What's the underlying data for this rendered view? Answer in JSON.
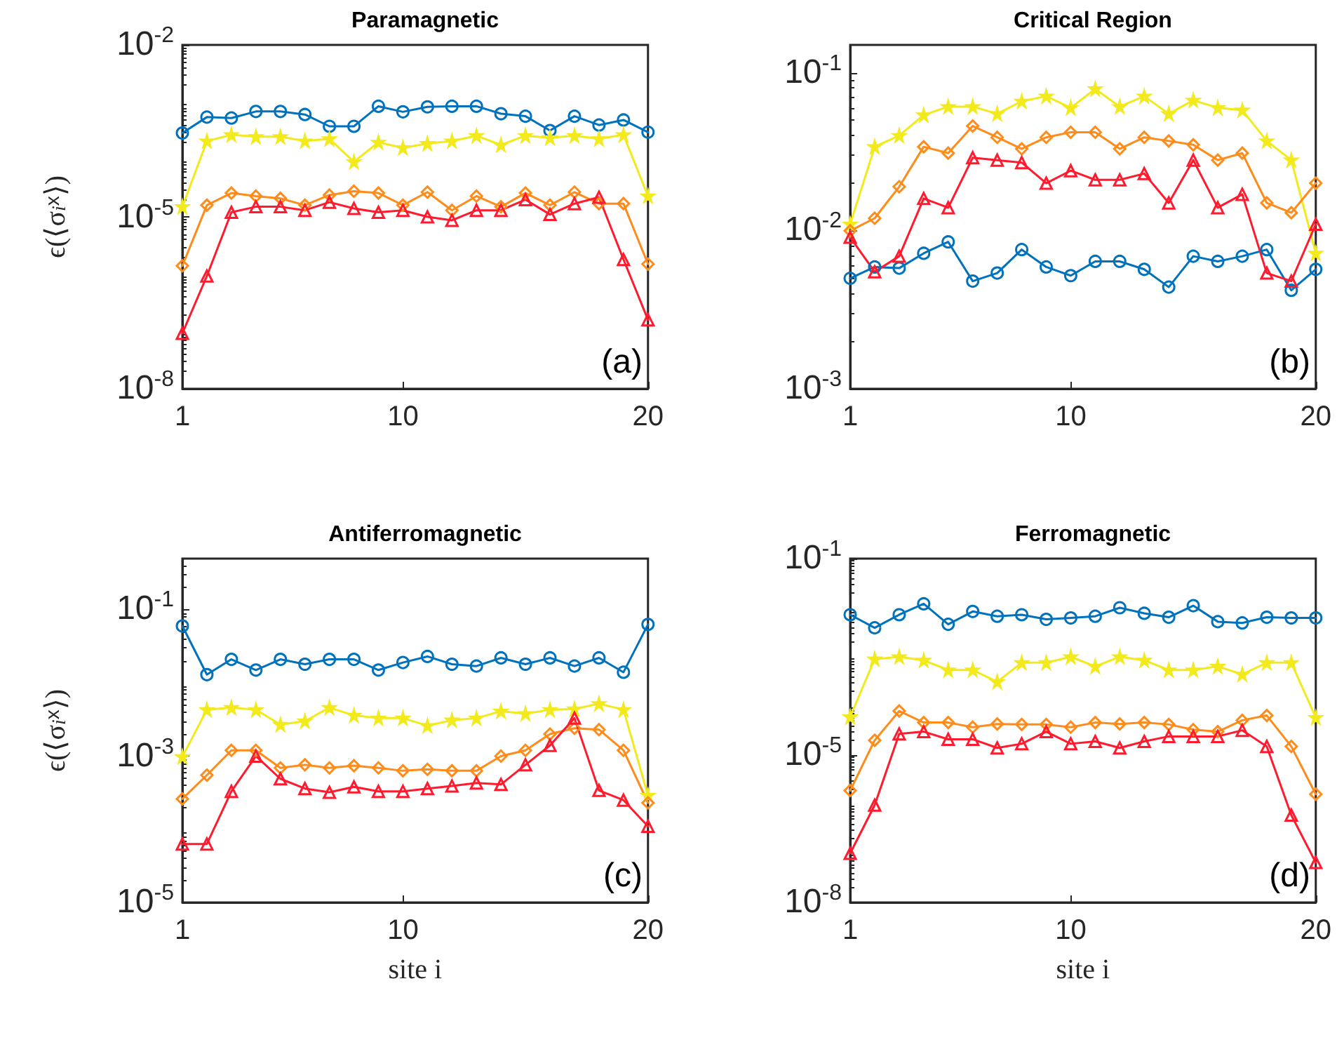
{
  "chart_data": [
    {
      "type": "line",
      "title": "Paramagnetic",
      "ylabel": "ϵ(⟨σ$_{i}$$^{x}$⟩)",
      "annotations": [
        "(a)"
      ],
      "x": [
        1,
        2,
        3,
        4,
        5,
        6,
        7,
        8,
        9,
        10,
        11,
        12,
        13,
        14,
        15,
        16,
        17,
        18,
        19,
        20
      ],
      "xlim": [
        1,
        20
      ],
      "xticks": [
        1,
        10,
        20
      ],
      "log": true,
      "ylim": [
        1e-08,
        0.01
      ],
      "yticks": [
        {
          "value": 1e-08,
          "label": "10$^{-8}$"
        },
        {
          "value": 1e-05,
          "label": "10$^{-5}$"
        },
        {
          "value": 0.01,
          "label": "10$^{-2}$"
        }
      ],
      "grid": false,
      "line_style": "solid",
      "series": [
        {
          "color": "#0072bd",
          "marker": "circle",
          "values": [
            0.00029,
            0.00055,
            0.00053,
            0.00069,
            0.00069,
            0.00061,
            0.00038,
            0.00038,
            0.00085,
            0.00068,
            0.00083,
            0.00085,
            0.00085,
            0.00063,
            0.00057,
            0.00032,
            0.00057,
            0.0004,
            0.00049,
            0.0003
          ]
        },
        {
          "color": "#f2ea1c",
          "marker": "star",
          "values": [
            1.5e-05,
            0.00021,
            0.00027,
            0.00025,
            0.00025,
            0.00021,
            0.00023,
            9.1e-05,
            0.0002,
            0.00016,
            0.00019,
            0.00021,
            0.00026,
            0.00018,
            0.00026,
            0.00024,
            0.00026,
            0.00023,
            0.00027,
            2.3e-05
          ]
        },
        {
          "color": "#ff8c1a",
          "marker": "diamond",
          "values": [
            1.4e-06,
            1.6e-05,
            2.6e-05,
            2.3e-05,
            2.1e-05,
            1.6e-05,
            2.4e-05,
            2.8e-05,
            2.6e-05,
            1.6e-05,
            2.7e-05,
            1.3e-05,
            2.3e-05,
            1.5e-05,
            2.6e-05,
            1.6e-05,
            2.7e-05,
            1.7e-05,
            1.7e-05,
            1.5e-06
          ]
        },
        {
          "color": "#ff1a2e",
          "marker": "triangle",
          "values": [
            9.3e-08,
            9.3e-07,
            1.2e-05,
            1.5e-05,
            1.5e-05,
            1.3e-05,
            1.8e-05,
            1.4e-05,
            1.2e-05,
            1.3e-05,
            1e-05,
            8.7e-06,
            1.3e-05,
            1.3e-05,
            2e-05,
            1.1e-05,
            1.7e-05,
            2.2e-05,
            1.8e-06,
            1.6e-07
          ]
        }
      ]
    },
    {
      "type": "line",
      "title": "Critical Region",
      "annotations": [
        "(b)"
      ],
      "x": [
        1,
        2,
        3,
        4,
        5,
        6,
        7,
        8,
        9,
        10,
        11,
        12,
        13,
        14,
        15,
        16,
        17,
        18,
        19,
        20
      ],
      "xlim": [
        1,
        20
      ],
      "xticks": [
        1,
        10,
        20
      ],
      "log": true,
      "ylim": [
        0.001,
        0.15
      ],
      "yticks": [
        {
          "value": 0.001,
          "label": "10$^{-3}$"
        },
        {
          "value": 0.01,
          "label": "10$^{-2}$"
        },
        {
          "value": 0.1,
          "label": "10$^{-1}$"
        }
      ],
      "grid": false,
      "line_style": "solid",
      "series": [
        {
          "color": "#0072bd",
          "marker": "circle",
          "values": [
            0.005,
            0.0059,
            0.0058,
            0.0072,
            0.0085,
            0.0048,
            0.0054,
            0.0076,
            0.0059,
            0.0052,
            0.0064,
            0.0064,
            0.0057,
            0.0044,
            0.0069,
            0.0064,
            0.0069,
            0.0076,
            0.0042,
            0.0057
          ]
        },
        {
          "color": "#f2ea1c",
          "marker": "star",
          "values": [
            0.011,
            0.034,
            0.04,
            0.054,
            0.061,
            0.061,
            0.055,
            0.066,
            0.071,
            0.06,
            0.079,
            0.061,
            0.071,
            0.055,
            0.067,
            0.06,
            0.058,
            0.037,
            0.028,
            0.0072
          ]
        },
        {
          "color": "#ff8c1a",
          "marker": "diamond",
          "values": [
            0.01,
            0.012,
            0.019,
            0.034,
            0.031,
            0.046,
            0.039,
            0.033,
            0.039,
            0.042,
            0.042,
            0.033,
            0.039,
            0.037,
            0.035,
            0.028,
            0.031,
            0.015,
            0.013,
            0.02
          ]
        },
        {
          "color": "#ff1a2e",
          "marker": "triangle",
          "values": [
            0.0091,
            0.0055,
            0.0069,
            0.016,
            0.014,
            0.029,
            0.028,
            0.027,
            0.02,
            0.024,
            0.021,
            0.021,
            0.023,
            0.015,
            0.028,
            0.014,
            0.017,
            0.0054,
            0.0048,
            0.011
          ]
        }
      ]
    },
    {
      "type": "line",
      "title": "Antiferromagnetic",
      "xlabel": "site i",
      "ylabel": "ϵ(⟨σ$_{i}$$^{x}$⟩)",
      "annotations": [
        "(c)"
      ],
      "x": [
        1,
        2,
        3,
        4,
        5,
        6,
        7,
        8,
        9,
        10,
        11,
        12,
        13,
        14,
        15,
        16,
        17,
        18,
        19,
        20
      ],
      "xlim": [
        1,
        20
      ],
      "xticks": [
        1,
        10,
        20
      ],
      "log": true,
      "ylim": [
        1e-05,
        0.5
      ],
      "yticks": [
        {
          "value": 1e-05,
          "label": "10$^{-5}$"
        },
        {
          "value": 0.001,
          "label": "10$^{-3}$"
        },
        {
          "value": 0.1,
          "label": "10$^{-1}$"
        }
      ],
      "grid": false,
      "line_style": "solid",
      "series": [
        {
          "color": "#0072bd",
          "marker": "circle",
          "values": [
            0.06,
            0.013,
            0.021,
            0.015,
            0.021,
            0.018,
            0.021,
            0.021,
            0.015,
            0.019,
            0.023,
            0.018,
            0.017,
            0.022,
            0.018,
            0.022,
            0.017,
            0.022,
            0.014,
            0.063
          ]
        },
        {
          "color": "#f2ea1c",
          "marker": "star",
          "values": [
            0.00098,
            0.0043,
            0.0046,
            0.0043,
            0.0027,
            0.003,
            0.0046,
            0.0036,
            0.0033,
            0.0033,
            0.0026,
            0.0031,
            0.0033,
            0.0041,
            0.0038,
            0.0043,
            0.0044,
            0.0052,
            0.0043,
            0.00029
          ]
        },
        {
          "color": "#ff8c1a",
          "marker": "diamond",
          "values": [
            0.00026,
            0.00055,
            0.0012,
            0.0012,
            0.00069,
            0.00076,
            0.00069,
            0.00074,
            0.00069,
            0.00063,
            0.00066,
            0.00063,
            0.00063,
            0.001,
            0.0012,
            0.002,
            0.0024,
            0.0023,
            0.0012,
            0.00023
          ]
        },
        {
          "color": "#ff1a2e",
          "marker": "triangle",
          "values": [
            6.3e-05,
            6.3e-05,
            0.00033,
            0.001,
            0.00049,
            0.00036,
            0.00032,
            0.00038,
            0.00033,
            0.00033,
            0.00036,
            0.00039,
            0.00043,
            0.00041,
            0.00076,
            0.0014,
            0.0033,
            0.00034,
            0.00025,
            0.00011
          ]
        }
      ]
    },
    {
      "type": "line",
      "title": "Ferromagnetic",
      "xlabel": "site i",
      "annotations": [
        "(d)"
      ],
      "x": [
        1,
        2,
        3,
        4,
        5,
        6,
        7,
        8,
        9,
        10,
        11,
        12,
        13,
        14,
        15,
        16,
        17,
        18,
        19,
        20
      ],
      "xlim": [
        1,
        20
      ],
      "xticks": [
        1,
        10,
        20
      ],
      "log": true,
      "ylim": [
        1e-08,
        0.1
      ],
      "yticks": [
        {
          "value": 1e-08,
          "label": "10$^{-8}$"
        },
        {
          "value": 1e-05,
          "label": "10$^{-5}$"
        },
        {
          "value": 0.1,
          "label": "10$^{-1}$"
        }
      ],
      "grid": false,
      "line_style": "solid",
      "series": [
        {
          "color": "#0072bd",
          "marker": "circle",
          "values": [
            0.0072,
            0.0039,
            0.0072,
            0.012,
            0.0046,
            0.0084,
            0.0067,
            0.0072,
            0.0058,
            0.0062,
            0.0067,
            0.01,
            0.0077,
            0.0064,
            0.011,
            0.0052,
            0.0049,
            0.0064,
            0.0062,
            0.0062
          ]
        },
        {
          "color": "#f2ea1c",
          "marker": "star",
          "values": [
            6e-05,
            0.0009,
            0.001,
            0.00085,
            0.00054,
            0.00054,
            0.00031,
            0.00076,
            0.00076,
            0.001,
            0.00064,
            0.001,
            0.00085,
            0.00054,
            0.00054,
            0.00064,
            0.00044,
            0.00076,
            0.00076,
            5.8e-05
          ]
        },
        {
          "color": "#ff8c1a",
          "marker": "diamond",
          "values": [
            1.9e-06,
            2e-05,
            7.9e-05,
            4.6e-05,
            4.6e-05,
            3.7e-05,
            4.3e-05,
            4.2e-05,
            4.2e-05,
            3.7e-05,
            4.6e-05,
            4.3e-05,
            4.6e-05,
            4.2e-05,
            3.3e-05,
            3e-05,
            5.1e-05,
            6.4e-05,
            1.5e-05,
            1.6e-06
          ]
        },
        {
          "color": "#ff1a2e",
          "marker": "triangle",
          "values": [
            1e-07,
            9.6e-07,
            2.7e-05,
            3e-05,
            2.1e-05,
            2.1e-05,
            1.4e-05,
            1.7e-05,
            3e-05,
            1.7e-05,
            1.9e-05,
            1.4e-05,
            1.9e-05,
            2.4e-05,
            2.4e-05,
            2.4e-05,
            3.2e-05,
            1.5e-05,
            6e-07,
            6.5e-08
          ]
        }
      ]
    }
  ]
}
